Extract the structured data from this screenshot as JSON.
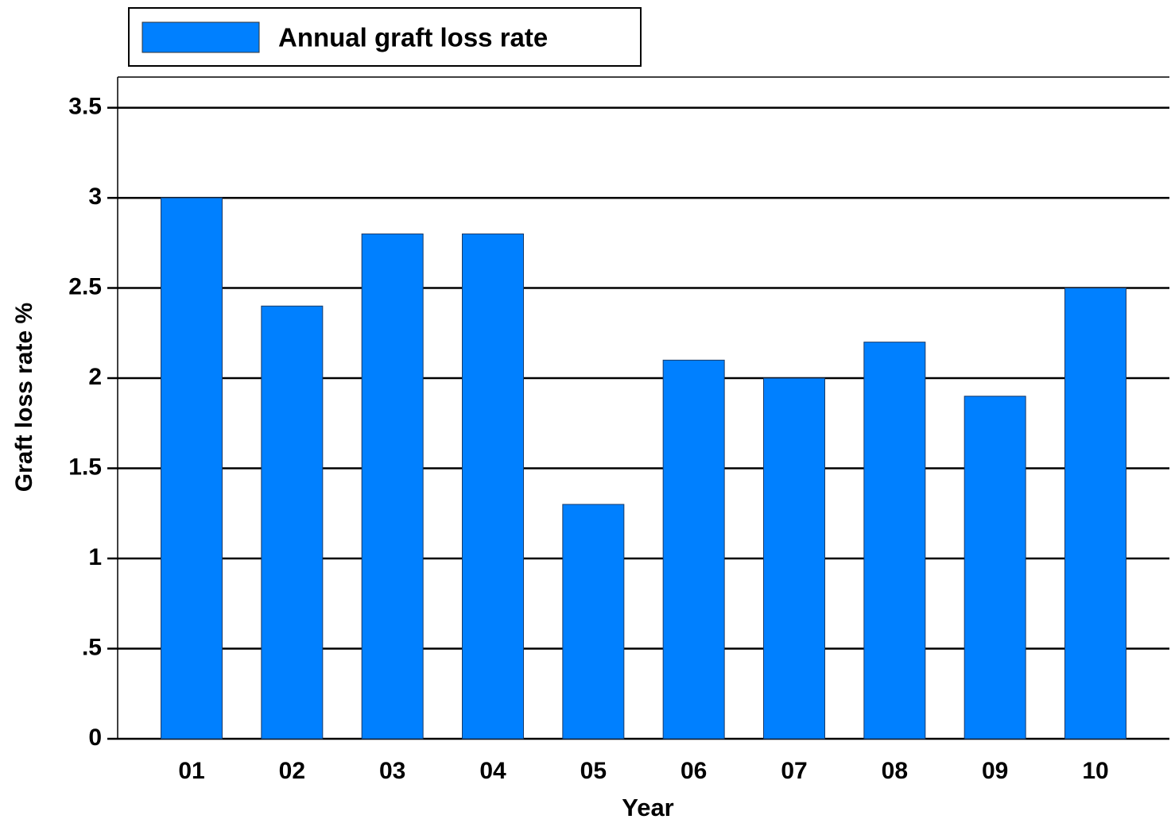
{
  "chart_data": {
    "type": "bar",
    "legend_label": "Annual graft loss rate",
    "y_label": "Graft loss rate %",
    "x_label": "Year",
    "categories": [
      "01",
      "02",
      "03",
      "04",
      "05",
      "06",
      "07",
      "08",
      "09",
      "10"
    ],
    "values": [
      3.0,
      2.4,
      2.8,
      2.8,
      1.3,
      2.1,
      2.0,
      2.2,
      1.9,
      2.5
    ],
    "color": "#0080ff",
    "ylim": [
      0,
      3.67
    ],
    "yticks": [
      0,
      {
        "value": 0.5,
        "label": ".5"
      },
      1,
      1.5,
      2,
      2.5,
      3,
      3.5
    ],
    "grid": true,
    "legend": "top-left"
  }
}
